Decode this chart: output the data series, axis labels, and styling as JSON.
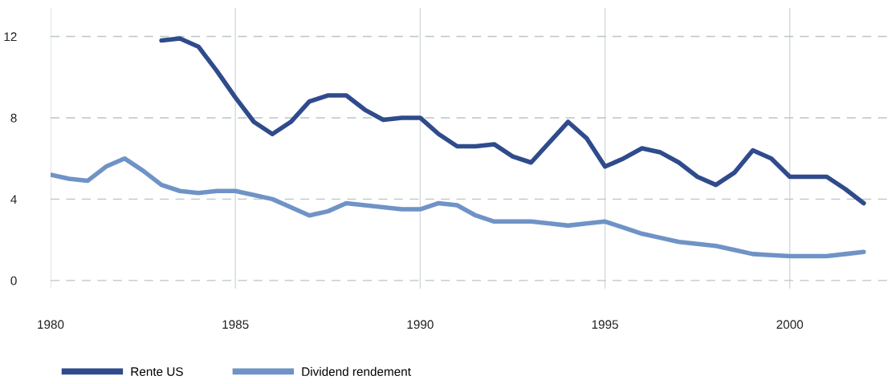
{
  "chart_data": {
    "type": "line",
    "x": [
      1980,
      1980.5,
      1981,
      1981.5,
      1982,
      1982.5,
      1983,
      1983.5,
      1984,
      1984.5,
      1985,
      1985.5,
      1986,
      1986.5,
      1987,
      1987.5,
      1988,
      1988.5,
      1989,
      1989.5,
      1990,
      1990.5,
      1991,
      1991.5,
      1992,
      1992.5,
      1993,
      1993.5,
      1994,
      1994.5,
      1995,
      1995.5,
      1996,
      1996.5,
      1997,
      1997.5,
      1998,
      1998.5,
      1999,
      1999.5,
      2000,
      2000.5,
      2001,
      2001.5,
      2002
    ],
    "series": [
      {
        "name": "Rente US",
        "color": "#2f4b8c",
        "values": [
          null,
          null,
          null,
          null,
          null,
          null,
          11.8,
          11.9,
          11.5,
          10.3,
          9.0,
          7.8,
          7.2,
          7.8,
          8.8,
          9.1,
          9.1,
          8.4,
          7.9,
          8.0,
          8.0,
          7.2,
          6.6,
          6.6,
          6.7,
          6.1,
          5.8,
          6.8,
          7.8,
          7.0,
          5.6,
          6.0,
          6.5,
          6.3,
          5.8,
          5.1,
          4.7,
          5.3,
          6.4,
          6.0,
          5.1,
          5.1,
          5.1,
          4.5,
          3.8
        ]
      },
      {
        "name": "Dividend rendement",
        "color": "#6f93c6",
        "values": [
          5.2,
          5.0,
          4.9,
          5.6,
          6.0,
          5.4,
          4.7,
          4.4,
          4.3,
          4.4,
          4.4,
          4.2,
          4.0,
          3.6,
          3.2,
          3.4,
          3.8,
          3.7,
          3.6,
          3.5,
          3.5,
          3.8,
          3.7,
          3.2,
          2.9,
          2.9,
          2.9,
          2.8,
          2.7,
          2.8,
          2.9,
          2.6,
          2.3,
          2.1,
          1.9,
          1.8,
          1.7,
          1.5,
          1.3,
          1.25,
          1.2,
          1.2,
          1.2,
          1.3,
          1.4
        ]
      }
    ],
    "xlim": [
      1980,
      2002.7
    ],
    "xticks": [
      1980,
      1985,
      1990,
      1995,
      2000
    ],
    "ylim": [
      -0.4,
      13.4
    ],
    "yticks": [
      0,
      4,
      8,
      12
    ],
    "grid": true,
    "legend": "bottom left",
    "marker": "none",
    "line_style": "solid"
  }
}
